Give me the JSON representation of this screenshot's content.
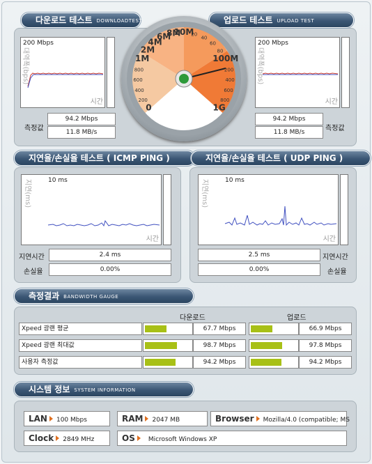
{
  "download": {
    "tab_title": "다운로드 테스트",
    "tab_sub": "DOWNLOADTEST",
    "graph_max": "200 Mbps",
    "y_axis": "대역폭(bps)",
    "x_axis": "시간",
    "label": "측정값",
    "value_mbps": "94.2 Mbps",
    "value_mbs": "11.8 MB/s"
  },
  "upload": {
    "tab_title": "업로드 테스트",
    "tab_sub": "UPLOAD TEST",
    "graph_max": "200 Mbps",
    "y_axis": "대역폭(bps)",
    "x_axis": "시간",
    "label": "측정값",
    "value_mbps": "94.2 Mbps",
    "value_mbs": "11.8 MB/s"
  },
  "gauge": {
    "labels": [
      "0",
      "200",
      "400",
      "600",
      "800",
      "1M",
      "2M",
      "4M",
      "6M",
      "8M",
      "10M",
      "20",
      "40",
      "60",
      "80",
      "100M",
      "200",
      "400",
      "600",
      "800",
      "1G"
    ],
    "needle_value": "100M"
  },
  "icmp": {
    "tab_title": "지연율/손실율 테스트 ( ICMP PING )",
    "graph_max": "10 ms",
    "y_axis": "지연(ms)",
    "x_axis": "시간",
    "latency_label": "지연시간",
    "latency_value": "2.4 ms",
    "loss_label": "손실율",
    "loss_value": "0.00%"
  },
  "udp": {
    "tab_title": "지연율/손실율 테스트 ( UDP PING )",
    "graph_max": "10 ms",
    "y_axis": "지연(ms)",
    "x_axis": "시간",
    "latency_label": "지연시간",
    "latency_value": "2.5 ms",
    "loss_label": "손실율",
    "loss_value": "0.00%"
  },
  "results": {
    "tab_title": "측정결과",
    "tab_sub": "BANDWIDTH GAUGE",
    "col_download": "다운로드",
    "col_upload": "업로드",
    "rows": [
      {
        "label": "Xpeed 광랜 평균",
        "down": "67.7 Mbps",
        "down_frac": 0.677,
        "up": "66.9 Mbps",
        "up_frac": 0.669
      },
      {
        "label": "Xpeed 광랜 최대값",
        "down": "98.7 Mbps",
        "down_frac": 0.987,
        "up": "97.8 Mbps",
        "up_frac": 0.978
      },
      {
        "label": "사용자 측정값",
        "down": "94.2 Mbps",
        "down_frac": 0.942,
        "up": "94.2 Mbps",
        "up_frac": 0.942
      }
    ]
  },
  "system": {
    "tab_title": "시스템 정보",
    "tab_sub": "SYSTEM INFORMATION",
    "lan_label": "LAN",
    "lan_value": "100 Mbps",
    "ram_label": "RAM",
    "ram_value": "2047 MB",
    "browser_label": "Browser",
    "browser_value": "Mozilla/4.0 (compatible; MS",
    "clock_label": "Clock",
    "clock_value": "2849 MHz",
    "os_label": "OS",
    "os_value": "Microsoft Windows XP"
  },
  "colors": {
    "accent": "#3b5674",
    "bar_fill": "#a8c016",
    "download_line": "#d04030",
    "upload_line": "#4050c0"
  }
}
